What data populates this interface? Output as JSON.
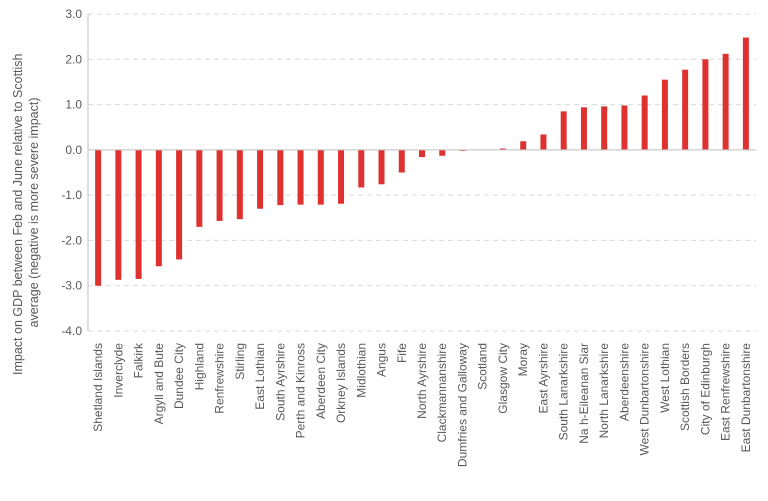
{
  "chart_data": {
    "type": "bar",
    "title": "",
    "xlabel": "",
    "ylabel": "Impact on GDP between Feb and June relative to Scottish average (negative is more severe impact)",
    "ylabel_lines": [
      "Impact on GDP between Feb and June relative to Scottish",
      "average (negative is more severe impact)"
    ],
    "ylim": [
      -4.0,
      3.0
    ],
    "yticks": [
      -4.0,
      -3.0,
      -2.0,
      -1.0,
      0.0,
      1.0,
      2.0,
      3.0
    ],
    "ytick_labels": [
      "-4.0",
      "-3.0",
      "-2.0",
      "-1.0",
      "0.0",
      "1.0",
      "2.0",
      "3.0"
    ],
    "grid": true,
    "bar_color": "#e03131",
    "categories": [
      "Shetland Islands",
      "Inverclyde",
      "Falkirk",
      "Argyll and Bute",
      "Dundee City",
      "Highland",
      "Renfrewshire",
      "Stirling",
      "East Lothian",
      "South Ayrshire",
      "Perth and Kinross",
      "Aberdeen City",
      "Orkney Islands",
      "Midlothian",
      "Angus",
      "Fife",
      "North Ayrshire",
      "Clackmannanshire",
      "Dumfries and Galloway",
      "Scotland",
      "Glasgow City",
      "Moray",
      "East Ayrshire",
      "South Lanarkshire",
      "Na h-Eileanan Siar",
      "North Lanarkshire",
      "Aberdeenshire",
      "West Dunbartonshire",
      "West Lothian",
      "Scottish Borders",
      "City of Edinburgh",
      "East Renfrewshire",
      "East Dunbartonshire"
    ],
    "values": [
      -3.0,
      -2.87,
      -2.85,
      -2.57,
      -2.42,
      -1.7,
      -1.57,
      -1.53,
      -1.3,
      -1.22,
      -1.21,
      -1.21,
      -1.19,
      -0.83,
      -0.76,
      -0.5,
      -0.16,
      -0.13,
      -0.02,
      0.0,
      0.03,
      0.19,
      0.34,
      0.85,
      0.94,
      0.96,
      0.98,
      1.2,
      1.55,
      1.77,
      2.0,
      2.12,
      2.48
    ]
  }
}
